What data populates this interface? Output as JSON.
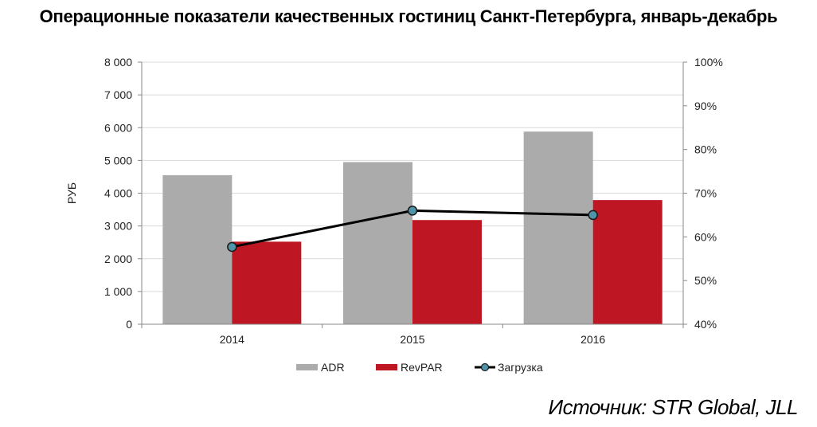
{
  "title": "Операционные показатели качественных гостиниц Санкт-Петербурга, январь-декабрь",
  "source": "Источник: STR Global, JLL",
  "chart_data": {
    "type": "bar",
    "categories": [
      "2014",
      "2015",
      "2016"
    ],
    "series": [
      {
        "name": "ADR",
        "type": "bar",
        "axis": "left",
        "color": "#ababab",
        "values": [
          4550,
          4950,
          5880
        ]
      },
      {
        "name": "RevPAR",
        "type": "bar",
        "axis": "left",
        "color": "#be1622",
        "values": [
          2520,
          3180,
          3790
        ]
      },
      {
        "name": "Загрузка",
        "type": "line",
        "axis": "right",
        "color": "#000000",
        "marker_color": "#4f94a8",
        "values": [
          57.7,
          66.0,
          65.0
        ]
      }
    ],
    "ylabel": "РУБ",
    "ylim": [
      0,
      8000
    ],
    "y_ticks": [
      "0",
      "1 000",
      "2 000",
      "3 000",
      "4 000",
      "5 000",
      "6 000",
      "7 000",
      "8 000"
    ],
    "y2lim": [
      40,
      100
    ],
    "y2_ticks": [
      "40%",
      "50%",
      "60%",
      "70%",
      "80%",
      "90%",
      "100%"
    ],
    "grid": true,
    "legend_position": "bottom"
  }
}
